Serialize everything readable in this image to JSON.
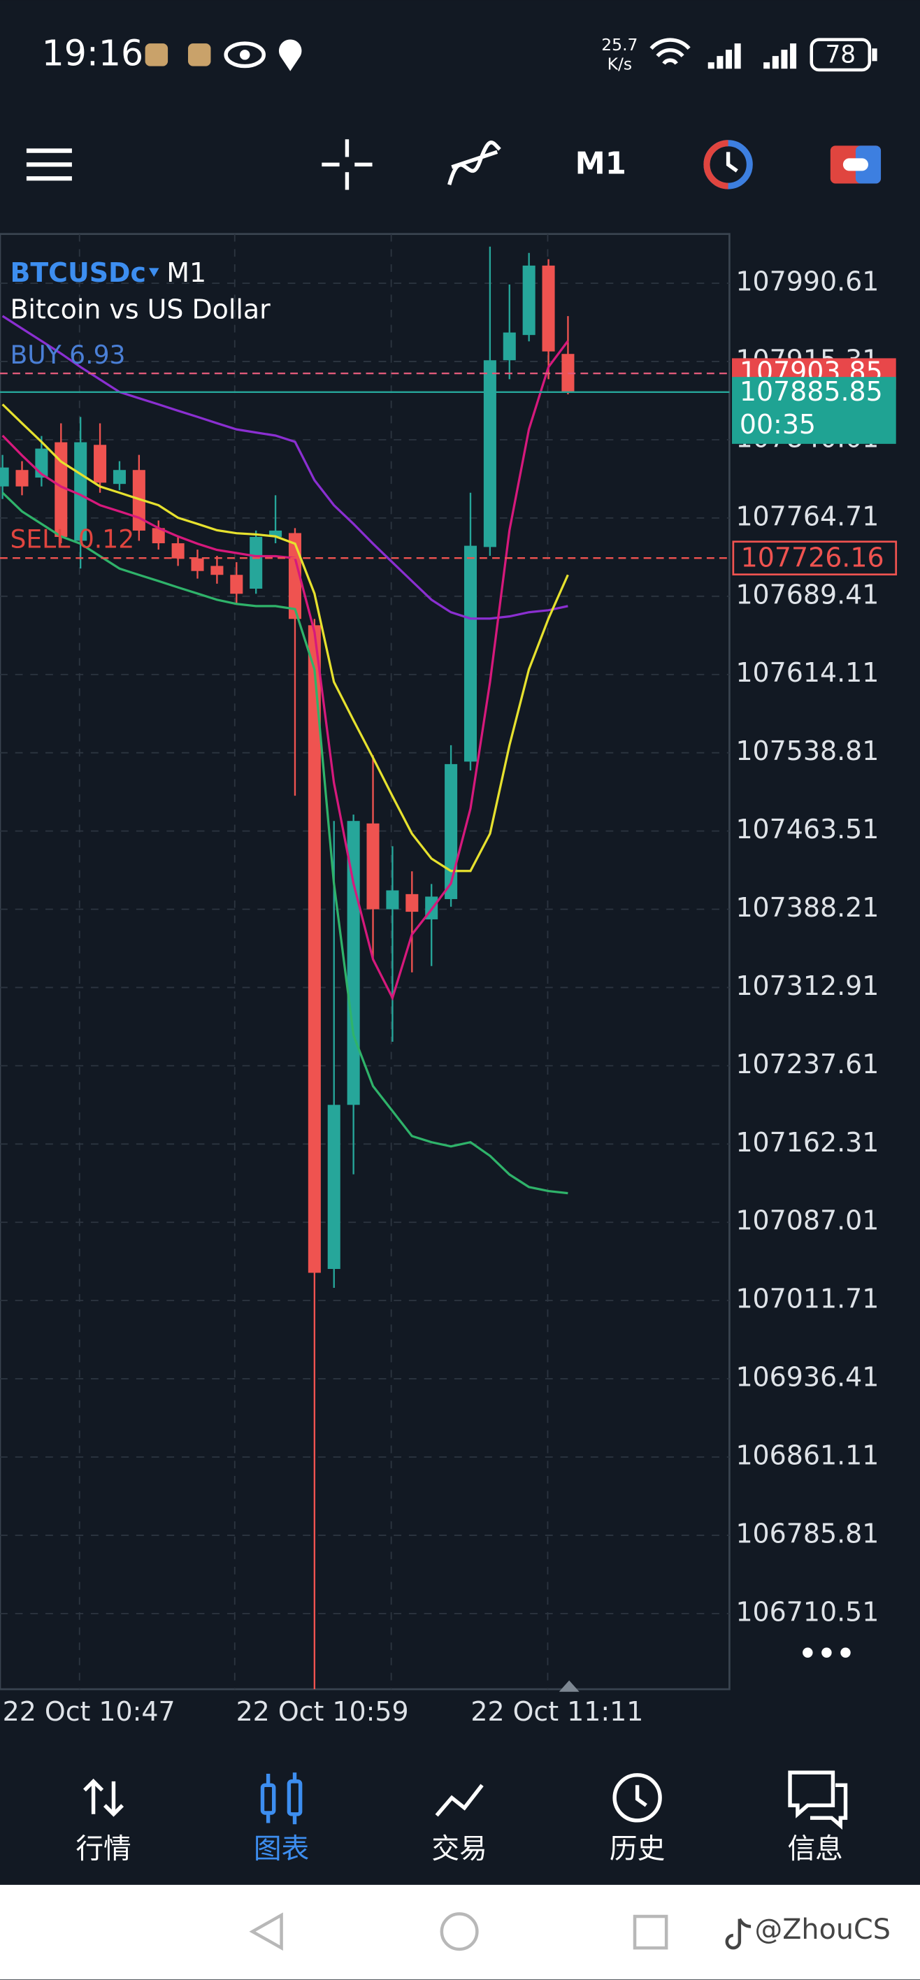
{
  "status_bar": {
    "time": "19:16",
    "net_speed": "25.7",
    "net_unit": "K/s",
    "battery": "78"
  },
  "toolbar": {
    "timeframe": "M1"
  },
  "chart_data": {
    "type": "candlestick",
    "symbol": "BTCUSDc",
    "timeframe": "M1",
    "description": "Bitcoin vs US Dollar",
    "buy_label": "BUY 6.93",
    "sell_label": "SELL 0.12",
    "buy_price": 107903.85,
    "bid_price": 107885.85,
    "countdown": "00:35",
    "sell_price": 107726.16,
    "ylim": [
      106637.7,
      108038.0
    ],
    "yticks": [
      107990.61,
      107915.31,
      107840.01,
      107764.71,
      107689.41,
      107614.11,
      107538.81,
      107463.51,
      107388.21,
      107312.91,
      107237.61,
      107162.31,
      107087.01,
      107011.71,
      106936.41,
      106861.11,
      106785.81,
      106710.51
    ],
    "time_labels": [
      "22 Oct 10:47",
      "22 Oct 10:59",
      "22 Oct 11:11"
    ],
    "candles": {
      "open": [
        107795.1,
        107810.9,
        107803.6,
        107837.6,
        107742.8,
        107835.1,
        107797.5,
        107810.9,
        107755.0,
        107740.4,
        107725.8,
        107718.6,
        107710.0,
        107696.7,
        107746.5,
        107750.2,
        107661.5,
        107042.1,
        107200.0,
        107470.8,
        107388.2,
        107402.8,
        107378.5,
        107398.0,
        107530.3,
        107736.8,
        107916.5,
        107940.8,
        108007.6,
        107922.6
      ],
      "high": [
        107825.4,
        107819.4,
        107843.6,
        107855.8,
        107861.9,
        107855.8,
        107819.4,
        107825.4,
        107762.3,
        107746.5,
        107734.3,
        107728.3,
        107722.2,
        107752.6,
        107786.6,
        107755.0,
        107667.6,
        107473.2,
        107479.3,
        107536.4,
        107448.9,
        107424.7,
        107412.5,
        107546.1,
        107789.0,
        108025.8,
        107989.4,
        108019.8,
        108013.7,
        107959.0
      ],
      "low": [
        107783.0,
        107786.6,
        107795.1,
        107740.4,
        107716.1,
        107789.0,
        107791.4,
        107742.8,
        107734.3,
        107718.6,
        107706.4,
        107701.5,
        107682.1,
        107691.8,
        107740.4,
        107497.5,
        106637.7,
        107023.9,
        107133.2,
        107339.6,
        107260.7,
        107327.5,
        107333.6,
        107390.7,
        107521.8,
        107728.3,
        107898.3,
        107934.7,
        107898.3,
        107883.7
      ],
      "close": [
        107813.3,
        107795.1,
        107831.5,
        107746.5,
        107837.6,
        107798.7,
        107810.9,
        107752.6,
        107740.4,
        107725.8,
        107713.7,
        107710.0,
        107691.8,
        107746.5,
        107752.6,
        107667.6,
        107038.4,
        107200.0,
        107473.2,
        107388.2,
        107406.4,
        107385.8,
        107400.4,
        107527.9,
        107738.0,
        107916.5,
        107943.2,
        108007.6,
        107925.0,
        107886.2
      ]
    },
    "indicators": [
      {
        "color": "#2fb36a",
        "values": [
          107789,
          107771,
          107759,
          107747,
          107740,
          107728,
          107716,
          107710,
          107704,
          107698,
          107692,
          107686,
          107682,
          107680,
          107680,
          107677,
          107619,
          107413,
          107267,
          107218,
          107194,
          107170,
          107164,
          107160,
          107164,
          107151,
          107133,
          107121,
          107117,
          107115
        ]
      },
      {
        "color": "#8b2fd1",
        "values": [
          107959,
          107947,
          107935,
          107923,
          107910,
          107898,
          107886,
          107880,
          107874,
          107868,
          107862,
          107856,
          107850,
          107847,
          107844,
          107838,
          107801,
          107777,
          107759,
          107740,
          107722,
          107704,
          107686,
          107674,
          107668,
          107668,
          107670,
          107674,
          107676,
          107680
        ]
      },
      {
        "color": "#e6e12e",
        "values": [
          107874,
          107856,
          107838,
          107819,
          107807,
          107795,
          107789,
          107783,
          107777,
          107765,
          107759,
          107753,
          107750,
          107749,
          107747,
          107740,
          107692,
          107607,
          107570,
          107534,
          107497,
          107461,
          107437,
          107425,
          107425,
          107461,
          107546,
          107619,
          107668,
          107710
        ]
      },
      {
        "color": "#d6197c",
        "values": [
          107844,
          107825,
          107807,
          107795,
          107787,
          107777,
          107771,
          107765,
          107755,
          107747,
          107740,
          107734,
          107731,
          107728,
          107728,
          107726,
          107655,
          107510,
          107413,
          107340,
          107303,
          107364,
          107388,
          107413,
          107485,
          107607,
          107753,
          107850,
          107910,
          107935
        ]
      }
    ]
  },
  "nav": {
    "items": [
      {
        "label": "行情"
      },
      {
        "label": "图表"
      },
      {
        "label": "交易"
      },
      {
        "label": "历史"
      },
      {
        "label": "信息"
      }
    ]
  },
  "watermark": "@ZhouCS"
}
